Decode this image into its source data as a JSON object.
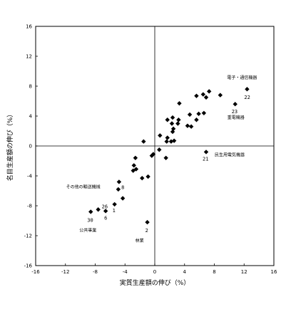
{
  "chart_data": {
    "type": "scatter",
    "title": "",
    "xlabel": "実質生産額の伸び（%）",
    "ylabel": "名目生産額の伸び（%）",
    "xlim": [
      -16,
      16
    ],
    "ylim": [
      -16,
      16
    ],
    "x_ticks": [
      -16,
      -12,
      -8,
      -4,
      0,
      4,
      8,
      12,
      16
    ],
    "y_ticks": [
      -16,
      -12,
      -8,
      -4,
      0,
      4,
      8,
      12,
      16
    ],
    "grid": false,
    "zero_lines": true,
    "marker": "diamond",
    "marker_color": "#000000",
    "points": [
      [
        12.4,
        7.6
      ],
      [
        10.8,
        5.6
      ],
      [
        8.8,
        6.8
      ],
      [
        7.3,
        7.3
      ],
      [
        6.9,
        6.5
      ],
      [
        6.5,
        6.9
      ],
      [
        5.6,
        6.7
      ],
      [
        6.6,
        4.4
      ],
      [
        5.9,
        4.3
      ],
      [
        5.6,
        3.5
      ],
      [
        4.7,
        4.2
      ],
      [
        4.4,
        2.7
      ],
      [
        4.9,
        2.6
      ],
      [
        3.3,
        5.7
      ],
      [
        3.2,
        3.5
      ],
      [
        3.1,
        3.0
      ],
      [
        2.4,
        3.8
      ],
      [
        2.3,
        3.0
      ],
      [
        2.5,
        2.3
      ],
      [
        2.4,
        1.9
      ],
      [
        1.7,
        3.5
      ],
      [
        1.7,
        1.1
      ],
      [
        1.6,
        0.6
      ],
      [
        2.2,
        0.6
      ],
      [
        2.6,
        0.7
      ],
      [
        0.7,
        1.4
      ],
      [
        0.6,
        -0.5
      ],
      [
        1.5,
        -1.6
      ],
      [
        -0.2,
        -1.1
      ],
      [
        -0.4,
        -1.3
      ],
      [
        -1.5,
        0.6
      ],
      [
        -2.6,
        -1.6
      ],
      [
        -2.8,
        -2.6
      ],
      [
        -2.5,
        -3.1
      ],
      [
        -2.9,
        -3.3
      ],
      [
        -1.7,
        -4.3
      ],
      [
        -0.9,
        -4.1
      ],
      [
        -4.8,
        -4.8
      ],
      [
        -4.9,
        -5.8
      ],
      [
        -4.3,
        -7.0
      ],
      [
        -5.4,
        -7.8
      ],
      [
        -6.6,
        -8.7
      ],
      [
        -7.6,
        -8.5
      ],
      [
        -8.6,
        -8.8
      ],
      [
        -1.0,
        -10.2
      ],
      [
        6.9,
        -0.8
      ]
    ],
    "annotations": [
      {
        "text": "電子・通信機器",
        "x": 12.4,
        "y": 7.6
      },
      {
        "text": "22",
        "x": 12.4,
        "y": 7.6
      },
      {
        "text": "23",
        "x": 10.8,
        "y": 5.6
      },
      {
        "text": "重電機器",
        "x": 10.8,
        "y": 5.6
      },
      {
        "text": "民生用電気機器",
        "x": 6.9,
        "y": -0.8
      },
      {
        "text": "21",
        "x": 6.9,
        "y": -0.8
      },
      {
        "text": "その他の輸送機械",
        "x": -7.6,
        "y": -8.5
      },
      {
        "text": "26",
        "x": -7.6,
        "y": -8.5
      },
      {
        "text": "30",
        "x": -8.6,
        "y": -8.8
      },
      {
        "text": "6",
        "x": -6.6,
        "y": -8.7
      },
      {
        "text": "1",
        "x": -5.4,
        "y": -7.8
      },
      {
        "text": "8",
        "x": -4.3,
        "y": -7.0
      },
      {
        "text": "公共事業",
        "x": -8.6,
        "y": -8.8
      },
      {
        "text": "2",
        "x": -1.0,
        "y": -10.2
      },
      {
        "text": "林業",
        "x": -1.0,
        "y": -10.2
      }
    ]
  }
}
